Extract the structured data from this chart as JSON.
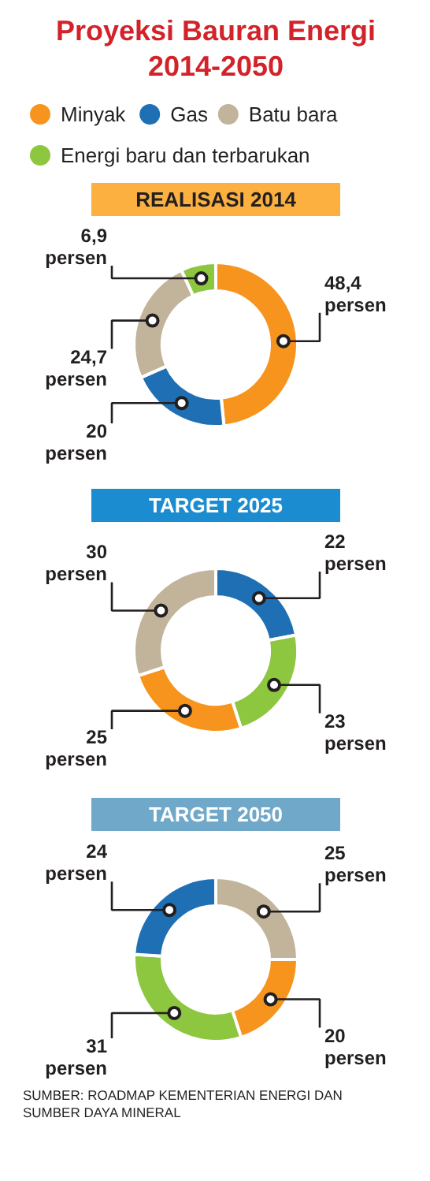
{
  "chart_data": [
    {
      "type": "donut",
      "title": "Proyeksi Bauran Energi 2014-2050",
      "subtitle": "REALISASI 2014",
      "legend": "top",
      "categories": [
        "Minyak",
        "Gas",
        "Batu bara",
        "Energi baru dan terbarukan"
      ],
      "values": [
        48.4,
        20,
        24.7,
        6.9
      ],
      "colors": [
        "#f7941d",
        "#1f6fb5",
        "#c2b49b",
        "#8dc63f"
      ],
      "value_labels": [
        "48,4 persen",
        "20 persen",
        "24,7 persen",
        "6,9 persen"
      ]
    },
    {
      "type": "donut",
      "title": "TARGET 2025",
      "categories": [
        null,
        null,
        null,
        null
      ],
      "values": [
        22,
        23,
        25,
        30
      ],
      "colors": [
        "#1f6fb5",
        "#8dc63f",
        "#f7941d",
        "#c2b49b"
      ],
      "value_labels": [
        "22 persen",
        "23 persen",
        "25 persen",
        "30 persen"
      ]
    },
    {
      "type": "donut",
      "title": "TARGET 2050",
      "categories": [
        null,
        null,
        null,
        null
      ],
      "values": [
        25,
        20,
        31,
        24
      ],
      "colors": [
        "#c2b49b",
        "#f7941d",
        "#8dc63f",
        "#1f6fb5"
      ],
      "value_labels": [
        "25 persen",
        "20 persen",
        "31 persen",
        "24 persen"
      ],
      "annotations": [
        "SUMBER: ROADMAP KEMENTERIAN ENERGI DAN SUMBER DAYA MINERAL"
      ]
    }
  ]
}
